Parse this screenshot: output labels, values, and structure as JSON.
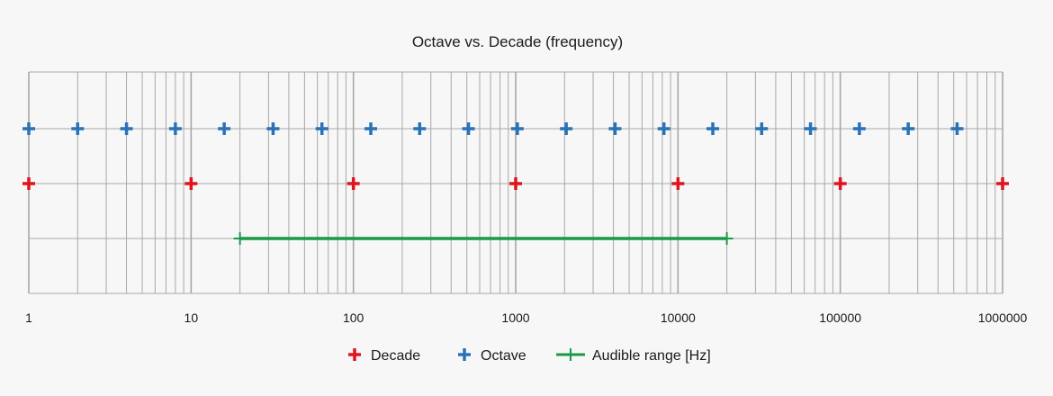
{
  "chart_data": {
    "type": "scatter",
    "title": "Octave vs. Decade (frequency)",
    "x_scale": "log",
    "xlim": [
      1,
      1000000
    ],
    "grid": true,
    "x_tick_labels": [
      "1",
      "10",
      "100",
      "1000",
      "10000",
      "100000",
      "1000000"
    ],
    "legend_position": "bottom",
    "series": [
      {
        "name": "Decade",
        "color": "#e0141e",
        "marker": "plus",
        "row": 2,
        "x": [
          1,
          10,
          100,
          1000,
          10000,
          100000,
          1000000
        ]
      },
      {
        "name": "Octave",
        "color": "#2a72b8",
        "marker": "plus",
        "row": 1,
        "x": [
          1,
          2,
          4,
          8,
          16,
          32,
          64,
          128,
          256,
          512,
          1024,
          2048,
          4096,
          8192,
          16384,
          32768,
          65536,
          131072,
          262144,
          524288
        ]
      },
      {
        "name": "Audible range [Hz]",
        "color": "#1a9a46",
        "marker": "plus-line",
        "row": 3,
        "x": [
          20,
          20000
        ]
      }
    ]
  }
}
